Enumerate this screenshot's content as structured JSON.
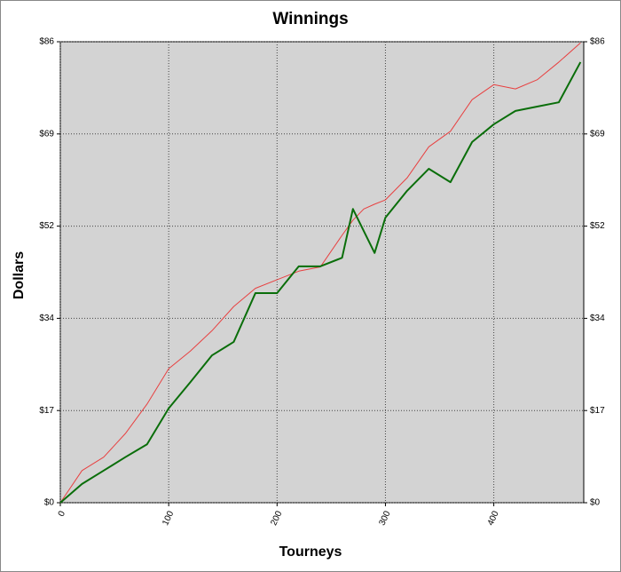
{
  "chart_data": {
    "type": "line",
    "title": "Winnings",
    "x_label": "Tourneys",
    "y_label": "Dollars",
    "x": [
      0,
      20,
      40,
      60,
      80,
      100,
      120,
      140,
      160,
      180,
      200,
      220,
      240,
      260,
      270,
      280,
      290,
      300,
      320,
      340,
      360,
      380,
      400,
      420,
      440,
      460,
      480
    ],
    "series": [
      {
        "color": "#e84040",
        "values": [
          0,
          6,
          8.5,
          12.9,
          18.4,
          25,
          28.3,
          32.1,
          36.6,
          40,
          41.6,
          43.2,
          44,
          49.9,
          52.7,
          54.8,
          55.7,
          56.5,
          60.6,
          66.4,
          69.3,
          75.2,
          78,
          77.2,
          78.9,
          82.2,
          85.8
        ]
      },
      {
        "color": "#0a6e0a",
        "values": [
          0,
          3.5,
          6,
          8.5,
          10.9,
          17.6,
          22.5,
          27.5,
          30,
          39.1,
          39.1,
          44.1,
          44.1,
          45.7,
          54.8,
          50.7,
          46.6,
          53.2,
          58.2,
          62.3,
          59.8,
          67.3,
          70.6,
          73.1,
          73.9,
          74.7,
          82.2
        ]
      }
    ],
    "xlim": [
      0,
      483
    ],
    "xticks": [
      0,
      100,
      200,
      300,
      400
    ],
    "ylim": [
      0,
      86
    ],
    "yticks": [
      {
        "value": 0,
        "label": "$0"
      },
      {
        "value": 17.2,
        "label": "$17"
      },
      {
        "value": 34.4,
        "label": "$34"
      },
      {
        "value": 51.6,
        "label": "$52"
      },
      {
        "value": 68.8,
        "label": "$69"
      },
      {
        "value": 86,
        "label": "$86"
      }
    ],
    "grid": true
  }
}
